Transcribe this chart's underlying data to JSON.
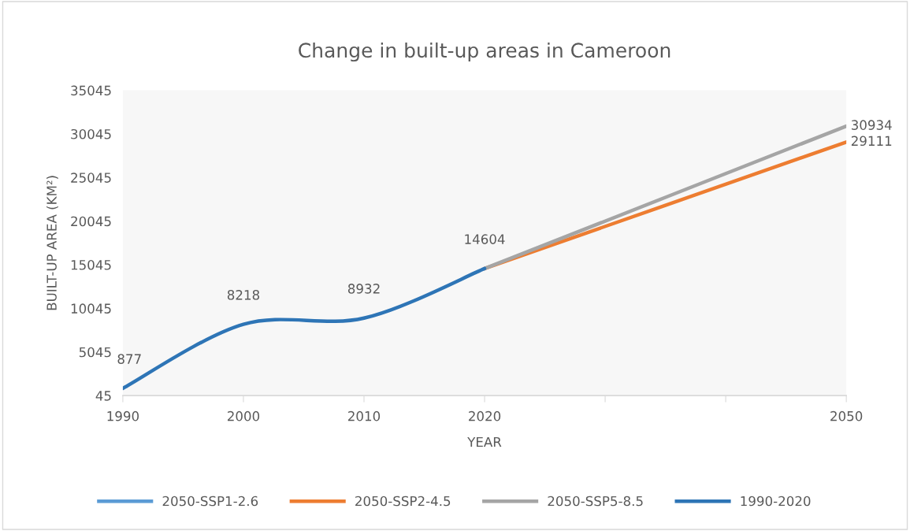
{
  "chart_data": {
    "type": "line",
    "title": "Change in built-up areas in Cameroon",
    "xlabel": "YEAR",
    "ylabel": "BUILT-UP AREA (KM²)",
    "xlim": [
      1990,
      2050
    ],
    "xticks": [
      1990,
      2000,
      2010,
      2020,
      {
        "value": 2030,
        "label": null
      },
      {
        "value": 2040,
        "label": null
      },
      2050
    ],
    "ylim": [
      45,
      35045
    ],
    "yticks": [
      45,
      5045,
      10045,
      15045,
      20045,
      25045,
      30045,
      35045
    ],
    "grid": false,
    "legend": "bottom",
    "marker": "none",
    "line_style": "solid",
    "series": [
      {
        "name": "2050-SSP1-2.6",
        "color": "#5b9bd5",
        "values": [
          null,
          null
        ]
      },
      {
        "name": "2050-SSP2-4.5",
        "color": "#ed7d31",
        "x": [
          2020,
          2050
        ],
        "values": [
          14604,
          29111
        ],
        "value_labels": [
          null,
          "29111"
        ]
      },
      {
        "name": "2050-SSP5-8.5",
        "color": "#a5a5a5",
        "x": [
          2020,
          2050
        ],
        "values": [
          14604,
          30934
        ],
        "value_labels": [
          null,
          "30934"
        ]
      },
      {
        "name": "1990-2020",
        "color": "#2e75b6",
        "x": [
          1990,
          2000,
          2010,
          2020
        ],
        "values": [
          877,
          8218,
          8932,
          14604
        ],
        "value_labels": [
          "877",
          "8218",
          "8932",
          "14604"
        ]
      }
    ]
  }
}
